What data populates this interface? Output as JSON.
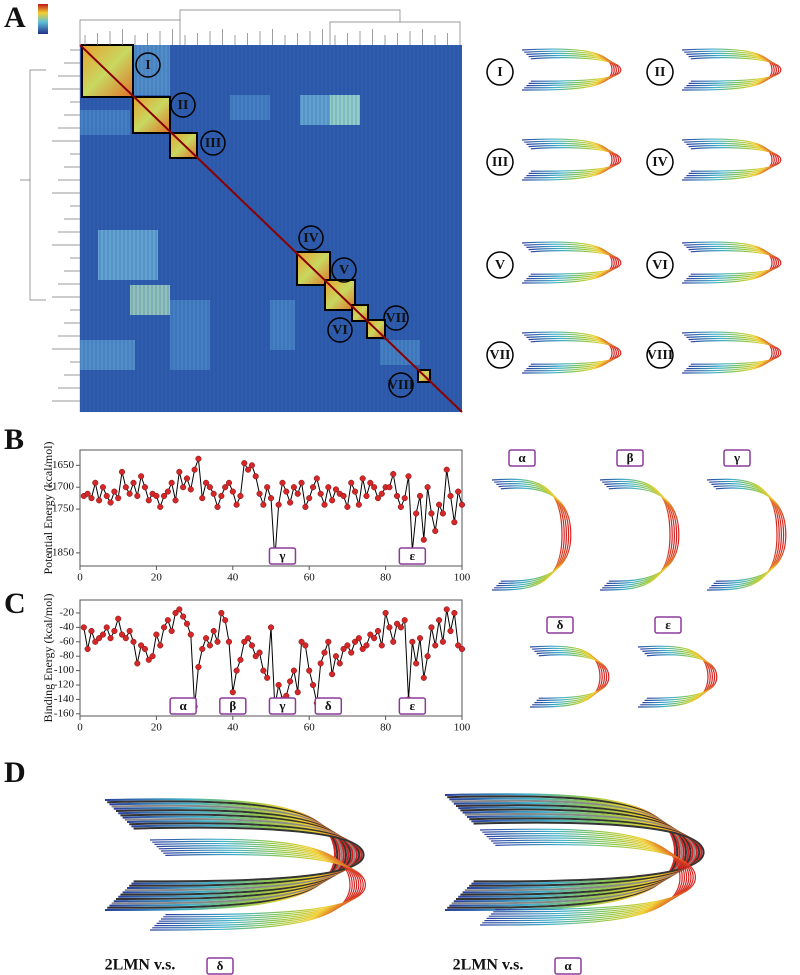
{
  "figure": {
    "panels": [
      "A",
      "B",
      "C",
      "D"
    ],
    "clusters": [
      "I",
      "II",
      "III",
      "IV",
      "V",
      "VI",
      "VII",
      "VIII"
    ],
    "states": [
      "α",
      "β",
      "γ",
      "δ",
      "ε"
    ],
    "comparisons": [
      {
        "text": "2LMN v.s.",
        "state": "δ"
      },
      {
        "text": "2LMN v.s.",
        "state": "α"
      }
    ]
  },
  "chart_data": [
    {
      "type": "line",
      "y_label": "Potential Energy (kcal/mol)",
      "color": "#000000",
      "marker_color": "#d62728",
      "x": [
        1,
        2,
        3,
        4,
        5,
        6,
        7,
        8,
        9,
        10,
        11,
        12,
        13,
        14,
        15,
        16,
        17,
        18,
        19,
        20,
        21,
        22,
        23,
        24,
        25,
        26,
        27,
        28,
        29,
        30,
        31,
        32,
        33,
        34,
        35,
        36,
        37,
        38,
        39,
        40,
        41,
        42,
        43,
        44,
        45,
        46,
        47,
        48,
        49,
        50,
        51,
        52,
        53,
        54,
        55,
        56,
        57,
        58,
        59,
        60,
        61,
        62,
        63,
        64,
        65,
        66,
        67,
        68,
        69,
        70,
        71,
        72,
        73,
        74,
        75,
        76,
        77,
        78,
        79,
        80,
        81,
        82,
        83,
        84,
        85,
        86,
        87,
        88,
        89,
        90,
        91,
        92,
        93,
        94,
        95,
        96,
        97,
        98,
        99,
        100
      ],
      "values": [
        -1720,
        -1715,
        -1725,
        -1690,
        -1730,
        -1700,
        -1720,
        -1735,
        -1710,
        -1725,
        -1665,
        -1700,
        -1715,
        -1690,
        -1720,
        -1675,
        -1700,
        -1730,
        -1715,
        -1720,
        -1745,
        -1720,
        -1710,
        -1690,
        -1730,
        -1665,
        -1700,
        -1680,
        -1705,
        -1660,
        -1635,
        -1725,
        -1690,
        -1700,
        -1715,
        -1745,
        -1720,
        -1700,
        -1690,
        -1710,
        -1740,
        -1720,
        -1645,
        -1660,
        -1650,
        -1675,
        -1715,
        -1740,
        -1700,
        -1725,
        -1865,
        -1740,
        -1690,
        -1710,
        -1735,
        -1700,
        -1715,
        -1690,
        -1745,
        -1725,
        -1700,
        -1680,
        -1715,
        -1740,
        -1700,
        -1730,
        -1705,
        -1715,
        -1720,
        -1745,
        -1690,
        -1710,
        -1740,
        -1680,
        -1720,
        -1690,
        -1700,
        -1725,
        -1715,
        -1700,
        -1700,
        -1670,
        -1720,
        -1745,
        -1725,
        -1675,
        -1845,
        -1760,
        -1720,
        -1820,
        -1700,
        -1760,
        -1800,
        -1740,
        -1760,
        -1660,
        -1720,
        -1780,
        -1710,
        -1740
      ],
      "xlim": [
        0,
        100
      ],
      "xticks": [
        0,
        20,
        40,
        60,
        80,
        100
      ],
      "ylim": [
        -1880,
        -1615
      ],
      "yticks": [
        -1650,
        -1700,
        -1750,
        -1850
      ],
      "annotations": [
        {
          "text": "γ",
          "x": 53
        },
        {
          "text": "ε",
          "x": 87
        }
      ]
    },
    {
      "type": "line",
      "y_label": "Binding Energy (kcal/mol)",
      "color": "#000000",
      "marker_color": "#d62728",
      "x": [
        1,
        2,
        3,
        4,
        5,
        6,
        7,
        8,
        9,
        10,
        11,
        12,
        13,
        14,
        15,
        16,
        17,
        18,
        19,
        20,
        21,
        22,
        23,
        24,
        25,
        26,
        27,
        28,
        29,
        30,
        31,
        32,
        33,
        34,
        35,
        36,
        37,
        38,
        39,
        40,
        41,
        42,
        43,
        44,
        45,
        46,
        47,
        48,
        49,
        50,
        51,
        52,
        53,
        54,
        55,
        56,
        57,
        58,
        59,
        60,
        61,
        62,
        63,
        64,
        65,
        66,
        67,
        68,
        69,
        70,
        71,
        72,
        73,
        74,
        75,
        76,
        77,
        78,
        79,
        80,
        81,
        82,
        83,
        84,
        85,
        86,
        87,
        88,
        89,
        90,
        91,
        92,
        93,
        94,
        95,
        96,
        97,
        98,
        99,
        100
      ],
      "values": [
        -40,
        -70,
        -45,
        -60,
        -55,
        -50,
        -40,
        -55,
        -45,
        -28,
        -50,
        -55,
        -45,
        -60,
        -90,
        -65,
        -70,
        -85,
        -80,
        -50,
        -65,
        -40,
        -30,
        -45,
        -20,
        -15,
        -25,
        -35,
        -50,
        -150,
        -95,
        -70,
        -55,
        -65,
        -45,
        -60,
        -20,
        -30,
        -60,
        -130,
        -100,
        -85,
        -60,
        -55,
        -65,
        -80,
        -75,
        -100,
        -110,
        -40,
        -150,
        -120,
        -140,
        -135,
        -115,
        -100,
        -130,
        -60,
        -65,
        -100,
        -120,
        -145,
        -90,
        -75,
        -60,
        -105,
        -80,
        -90,
        -70,
        -65,
        -75,
        -60,
        -55,
        -70,
        -65,
        -50,
        -55,
        -45,
        -65,
        -20,
        -40,
        -60,
        -35,
        -40,
        -30,
        -140,
        -60,
        -90,
        -55,
        -110,
        -80,
        -40,
        -65,
        -30,
        -60,
        -15,
        -45,
        -20,
        -65,
        -70
      ],
      "xlim": [
        0,
        100
      ],
      "xticks": [
        0,
        20,
        40,
        60,
        80,
        100
      ],
      "ylim": [
        -163,
        -2
      ],
      "yticks": [
        -20,
        -40,
        -60,
        -80,
        -100,
        -120,
        -140,
        -160
      ],
      "annotations": [
        {
          "text": "α",
          "x": 27
        },
        {
          "text": "β",
          "x": 40
        },
        {
          "text": "γ",
          "x": 53
        },
        {
          "text": "δ",
          "x": 65
        },
        {
          "text": "ε",
          "x": 87
        }
      ]
    }
  ]
}
